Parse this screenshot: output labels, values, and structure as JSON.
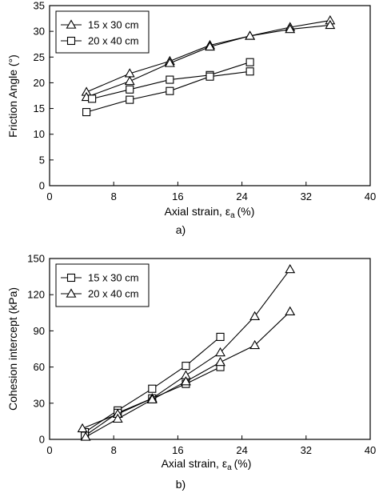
{
  "chart_data": [
    {
      "type": "line",
      "panel_label": "a)",
      "xlabel": "Axial strain, ε",
      "xlabel_subscript": "a",
      "xlabel_unit": "(%)",
      "ylabel": "Friction Angle (°)",
      "xlim": [
        0,
        40
      ],
      "ylim": [
        0,
        35
      ],
      "x_ticks": [
        "0",
        "8",
        "16",
        "24",
        "32",
        "40"
      ],
      "y_ticks": [
        "0",
        "5",
        "10",
        "15",
        "20",
        "25",
        "30",
        "35"
      ],
      "grid": false,
      "legend_position": "top-left",
      "series": [
        {
          "name": "15 x 30 cm",
          "marker": "triangle",
          "x": [
            4.6,
            10,
            15,
            20,
            25,
            30,
            35
          ],
          "y": [
            18.2,
            21.8,
            24.2,
            27.3,
            29.1,
            30.8,
            32.1
          ]
        },
        {
          "name": "",
          "marker": "triangle",
          "x": [
            4.6,
            10,
            15,
            20,
            25,
            30,
            35
          ],
          "y": [
            17.2,
            20.3,
            23.8,
            27.0,
            29.1,
            30.4,
            31.2
          ]
        },
        {
          "name": "20 x 40 cm",
          "marker": "square",
          "x": [
            5.3,
            10,
            15,
            20,
            25
          ],
          "y": [
            16.9,
            18.7,
            20.6,
            21.5,
            24.0
          ]
        },
        {
          "name": "",
          "marker": "square",
          "x": [
            4.6,
            10,
            15,
            20,
            25
          ],
          "y": [
            14.3,
            16.7,
            18.4,
            21.2,
            22.2
          ]
        }
      ]
    },
    {
      "type": "line",
      "panel_label": "b)",
      "xlabel": "Axial strain, ε",
      "xlabel_subscript": "a",
      "xlabel_unit": "(%)",
      "ylabel": "Cohesion intercept (kPa)",
      "xlim": [
        0,
        40
      ],
      "ylim": [
        0,
        150
      ],
      "x_ticks": [
        "0",
        "8",
        "16",
        "24",
        "32",
        "40"
      ],
      "y_ticks": [
        "0",
        "30",
        "60",
        "90",
        "120",
        "150"
      ],
      "grid": false,
      "legend_position": "top-left",
      "series": [
        {
          "name": "15 x 30 cm",
          "marker": "square",
          "x": [
            4.4,
            8.5,
            12.8,
            17,
            21.3
          ],
          "y": [
            6,
            24,
            42,
            61,
            85
          ]
        },
        {
          "name": "",
          "marker": "square",
          "x": [
            4.4,
            8.5,
            12.8,
            17,
            21.3
          ],
          "y": [
            3,
            22,
            34,
            46,
            60
          ]
        },
        {
          "name": "20 x 40 cm",
          "marker": "triangle",
          "x": [
            4.1,
            8.5,
            12.8,
            17,
            21.3,
            25.6,
            30
          ],
          "y": [
            9,
            21,
            34,
            53,
            72,
            102,
            141
          ]
        },
        {
          "name": "",
          "marker": "triangle",
          "x": [
            4.5,
            8.5,
            12.8,
            17,
            21.3,
            25.6,
            30
          ],
          "y": [
            2,
            17,
            33,
            48,
            64,
            78,
            106
          ]
        }
      ]
    }
  ]
}
